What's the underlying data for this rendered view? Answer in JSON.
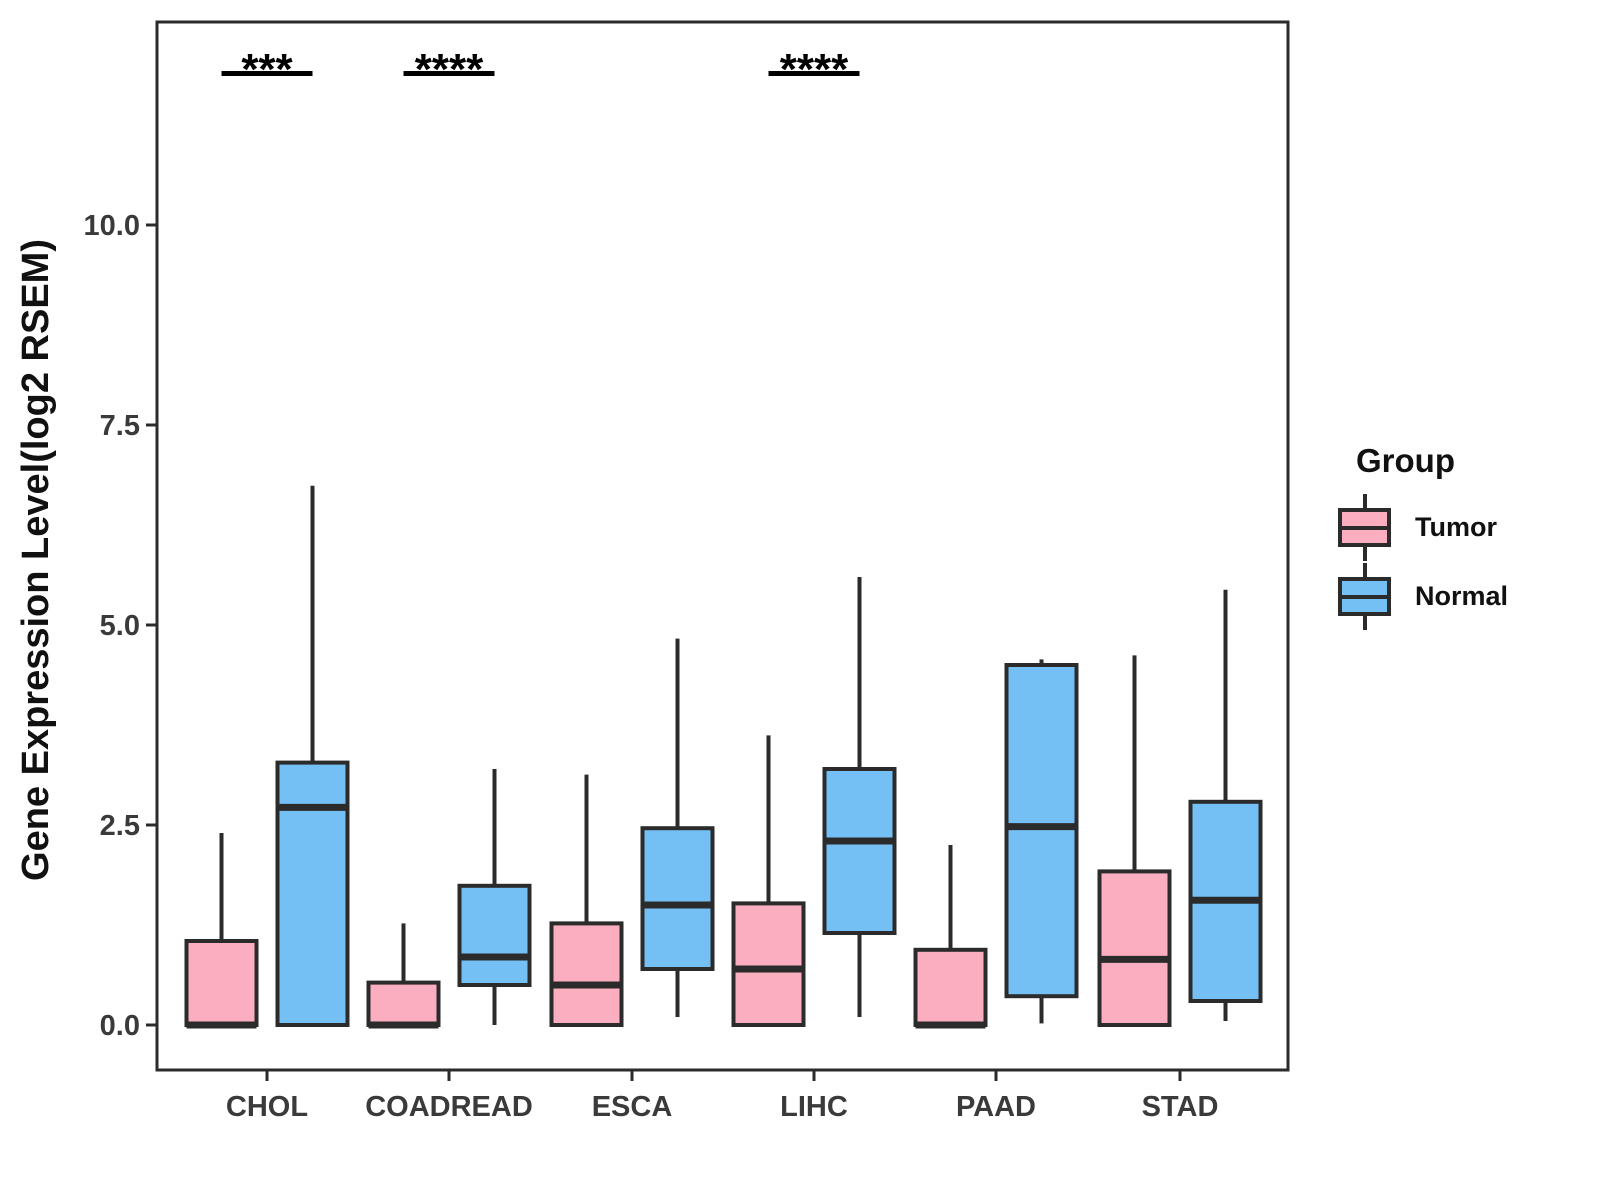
{
  "figure": {
    "background": "#ffffff"
  },
  "colors": {
    "box_outline": "#2b2b2b",
    "axis_text": "#3a3a3a",
    "title_text": "#111111",
    "tumor_fill": "#fbaec0",
    "normal_fill": "#74bff4"
  },
  "chart_data": {
    "type": "boxplot",
    "title": "",
    "xlabel": "",
    "ylabel": "Gene Expression Level(log2 RSEM)",
    "categories": [
      "CHOL",
      "COADREAD",
      "ESCA",
      "LIHC",
      "PAAD",
      "STAD"
    ],
    "groups": [
      {
        "name": "Tumor",
        "fill": "#fbaec0"
      },
      {
        "name": "Normal",
        "fill": "#74bff4"
      }
    ],
    "y_ticks": [
      "0.0",
      "2.5",
      "5.0",
      "7.5",
      "10.0"
    ],
    "y_tick_values": [
      0,
      2.5,
      5,
      7.5,
      10
    ],
    "ylim": [
      -0.56,
      12.54
    ],
    "grid": false,
    "legend_position": "right",
    "boxes": [
      {
        "category": "CHOL",
        "group": "Tumor",
        "whisker_low": 0,
        "q1": 0,
        "median": 0,
        "q3": 1.05,
        "whisker_high": 2.4
      },
      {
        "category": "CHOL",
        "group": "Normal",
        "whisker_low": 0,
        "q1": 0,
        "median": 2.72,
        "q3": 3.28,
        "whisker_high": 6.74
      },
      {
        "category": "COADREAD",
        "group": "Tumor",
        "whisker_low": 0,
        "q1": 0,
        "median": 0,
        "q3": 0.53,
        "whisker_high": 1.27
      },
      {
        "category": "COADREAD",
        "group": "Normal",
        "whisker_low": 0,
        "q1": 0.5,
        "median": 0.85,
        "q3": 1.74,
        "whisker_high": 3.2
      },
      {
        "category": "ESCA",
        "group": "Tumor",
        "whisker_low": 0,
        "q1": 0,
        "median": 0.5,
        "q3": 1.27,
        "whisker_high": 3.13
      },
      {
        "category": "ESCA",
        "group": "Normal",
        "whisker_low": 0.1,
        "q1": 0.7,
        "median": 1.5,
        "q3": 2.46,
        "whisker_high": 4.83
      },
      {
        "category": "LIHC",
        "group": "Tumor",
        "whisker_low": 0,
        "q1": 0,
        "median": 0.7,
        "q3": 1.52,
        "whisker_high": 3.62
      },
      {
        "category": "LIHC",
        "group": "Normal",
        "whisker_low": 0.1,
        "q1": 1.15,
        "median": 2.3,
        "q3": 3.2,
        "whisker_high": 5.6
      },
      {
        "category": "PAAD",
        "group": "Tumor",
        "whisker_low": 0,
        "q1": 0,
        "median": 0,
        "q3": 0.94,
        "whisker_high": 2.25
      },
      {
        "category": "PAAD",
        "group": "Normal",
        "whisker_low": 0.02,
        "q1": 0.36,
        "median": 2.48,
        "q3": 4.5,
        "whisker_high": 4.57
      },
      {
        "category": "STAD",
        "group": "Tumor",
        "whisker_low": 0,
        "q1": 0,
        "median": 0.82,
        "q3": 1.92,
        "whisker_high": 4.62
      },
      {
        "category": "STAD",
        "group": "Normal",
        "whisker_low": 0.05,
        "q1": 0.3,
        "median": 1.56,
        "q3": 2.79,
        "whisker_high": 5.44
      }
    ],
    "significance": [
      {
        "category": "CHOL",
        "label": "***"
      },
      {
        "category": "COADREAD",
        "label": "****"
      },
      {
        "category": "LIHC",
        "label": "****"
      }
    ],
    "legend": {
      "title": "Group",
      "items": [
        "Tumor",
        "Normal"
      ]
    }
  }
}
